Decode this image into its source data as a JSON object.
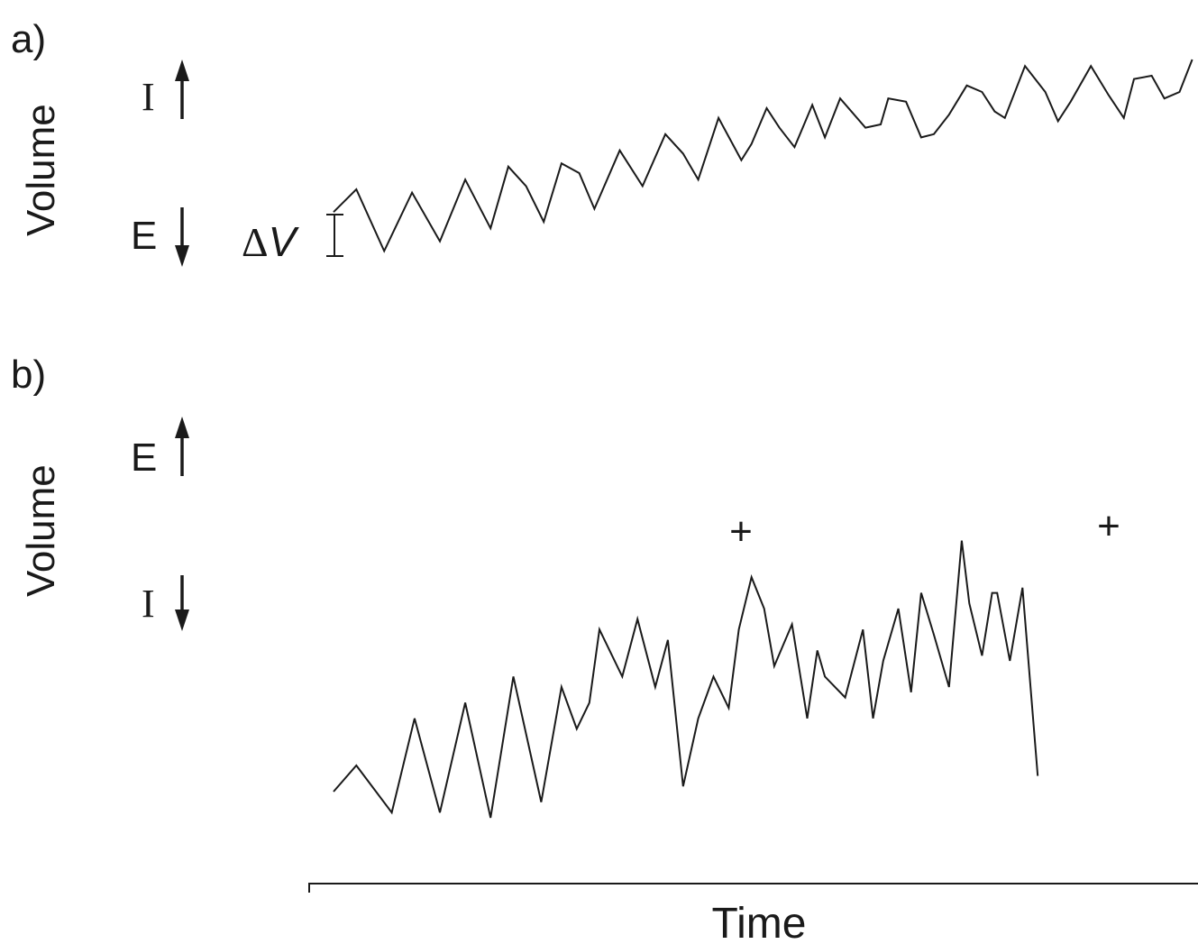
{
  "panel_a": {
    "label": "a)",
    "ylabel": "Volume",
    "top_marker": "I",
    "bottom_marker": "E",
    "delta_symbol": "Δ",
    "delta_var": "V"
  },
  "panel_b": {
    "label": "b)",
    "ylabel": "Volume",
    "top_marker": "E",
    "bottom_marker": "I",
    "annotation_1": "+",
    "annotation_2": "+"
  },
  "xlabel": "Time",
  "chart_data": [
    {
      "type": "line",
      "title": "a)",
      "xlabel": "Time",
      "ylabel": "Volume",
      "series": [
        {
          "x": [
            0,
            0.9,
            2,
            3.1,
            4.2,
            5.2,
            6.2,
            6.9,
            7.6,
            8.3,
            9.0,
            9.7,
            10.3,
            11.3,
            12.2,
            13.1,
            13.8,
            14.4,
            15.2,
            16.1,
            16.5,
            17.1,
            17.6,
            18.2,
            18.9,
            19.4,
            20.0,
            21.0,
            21.6,
            21.9,
            22.6,
            23.2,
            23.7,
            24.3,
            25.0,
            25.6,
            26.1,
            26.5,
            27.3,
            28.1,
            28.6,
            29.1,
            29.9,
            30.6,
            31.2,
            31.6,
            32.3,
            32.8,
            33.4,
            33.9
          ],
          "y": [
            0.3,
            1.0,
            -0.9,
            0.9,
            -0.6,
            1.3,
            -0.2,
            1.7,
            1.1,
            0.0,
            1.8,
            1.5,
            0.4,
            2.2,
            1.1,
            2.7,
            2.1,
            1.3,
            3.2,
            1.9,
            2.4,
            3.5,
            2.9,
            2.3,
            3.6,
            2.6,
            3.8,
            2.9,
            3.0,
            3.8,
            3.7,
            2.6,
            2.7,
            3.3,
            4.2,
            4.0,
            3.4,
            3.2,
            4.8,
            4.0,
            3.1,
            3.7,
            4.8,
            3.9,
            3.2,
            4.4,
            4.5,
            3.8,
            4.0,
            5.0
          ]
        }
      ]
    },
    {
      "type": "line",
      "title": "b)",
      "xlabel": "Time",
      "ylabel": "Volume",
      "series": [
        {
          "x": [
            0,
            0.9,
            2.3,
            3.2,
            4.2,
            5.2,
            6.2,
            7.1,
            8.2,
            9.0,
            9.6,
            10.1,
            10.5,
            11.4,
            12.0,
            12.7,
            13.2,
            13.8,
            14.4,
            15.0,
            15.6,
            16.0,
            16.5,
            17.0,
            17.4,
            18.1,
            18.7,
            19.1,
            19.4,
            20.2,
            20.9,
            21.3,
            21.7,
            22.3,
            22.8,
            23.2,
            23.7,
            24.3,
            24.8,
            25.1,
            25.6,
            26.0,
            26.2,
            26.7,
            27.2,
            27.8
          ],
          "y": [
            -0.3,
            0.2,
            -0.7,
            1.1,
            -0.7,
            1.4,
            -0.8,
            1.9,
            -0.5,
            1.7,
            0.9,
            1.4,
            2.8,
            1.9,
            3.0,
            1.7,
            2.6,
            -0.2,
            1.1,
            1.9,
            1.3,
            2.8,
            3.8,
            3.2,
            2.1,
            2.9,
            1.1,
            2.4,
            1.9,
            1.5,
            2.8,
            1.1,
            2.2,
            3.2,
            1.6,
            3.5,
            2.7,
            1.7,
            4.5,
            3.3,
            2.3,
            3.5,
            3.5,
            2.2,
            3.6,
            0.0
          ]
        }
      ]
    }
  ]
}
